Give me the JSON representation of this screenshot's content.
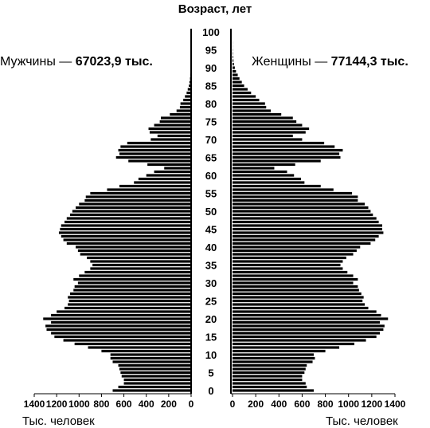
{
  "chart_data": {
    "type": "bar",
    "title": "Возраст, лет",
    "male_label_prefix": "Мужчины — ",
    "male_label_total": "67023,9 тыс.",
    "female_label_prefix": "Женщины — ",
    "female_label_total": "77144,3 тыс.",
    "axis_unit_left": "Тыс. человек",
    "axis_unit_right": "Тыс. человек",
    "ages": [
      0,
      1,
      2,
      3,
      4,
      5,
      6,
      7,
      8,
      9,
      10,
      11,
      12,
      13,
      14,
      15,
      16,
      17,
      18,
      19,
      20,
      21,
      22,
      23,
      24,
      25,
      26,
      27,
      28,
      29,
      30,
      31,
      32,
      33,
      34,
      35,
      36,
      37,
      38,
      39,
      40,
      41,
      42,
      43,
      44,
      45,
      46,
      47,
      48,
      49,
      50,
      51,
      52,
      53,
      54,
      55,
      56,
      57,
      58,
      59,
      60,
      61,
      62,
      63,
      64,
      65,
      66,
      67,
      68,
      69,
      70,
      71,
      72,
      73,
      74,
      75,
      76,
      77,
      78,
      79,
      80,
      81,
      82,
      83,
      84,
      85,
      86,
      87,
      88,
      89,
      90,
      91,
      92,
      93,
      94,
      95,
      96,
      97,
      98,
      99
    ],
    "age_ticks": [
      0,
      5,
      10,
      15,
      20,
      25,
      30,
      35,
      40,
      45,
      50,
      55,
      60,
      65,
      70,
      75,
      80,
      85,
      90,
      95,
      100
    ],
    "x_ticks_left": [
      1400,
      1200,
      1000,
      800,
      600,
      400,
      200,
      0
    ],
    "x_ticks_right": [
      0,
      200,
      400,
      600,
      800,
      1000,
      1200,
      1400
    ],
    "xlim": [
      0,
      1400
    ],
    "series": [
      {
        "name": "Мужчины",
        "side": "left",
        "values": [
          700,
          650,
          600,
          600,
          620,
          630,
          640,
          650,
          700,
          720,
          720,
          800,
          920,
          1040,
          1140,
          1220,
          1250,
          1290,
          1300,
          1250,
          1320,
          1250,
          1200,
          1130,
          1100,
          1090,
          1100,
          1080,
          1050,
          1040,
          1010,
          1050,
          1000,
          950,
          900,
          880,
          900,
          930,
          990,
          1010,
          1030,
          1110,
          1140,
          1160,
          1180,
          1170,
          1160,
          1130,
          1110,
          1080,
          1060,
          1030,
          1000,
          950,
          940,
          900,
          750,
          640,
          510,
          470,
          400,
          330,
          240,
          390,
          560,
          670,
          640,
          650,
          630,
          570,
          360,
          300,
          370,
          380,
          330,
          280,
          270,
          190,
          130,
          100,
          95,
          70,
          55,
          40,
          30,
          20,
          15,
          10,
          8,
          5,
          3,
          2,
          1,
          1,
          1,
          0,
          0,
          0,
          0,
          0
        ]
      },
      {
        "name": "Женщины",
        "side": "right",
        "values": [
          700,
          640,
          630,
          600,
          600,
          620,
          630,
          640,
          690,
          710,
          700,
          800,
          920,
          1050,
          1150,
          1240,
          1270,
          1300,
          1310,
          1270,
          1340,
          1280,
          1240,
          1170,
          1140,
          1120,
          1130,
          1110,
          1090,
          1080,
          1040,
          1080,
          1040,
          990,
          950,
          930,
          950,
          980,
          1040,
          1070,
          1100,
          1190,
          1230,
          1260,
          1300,
          1290,
          1290,
          1260,
          1240,
          1210,
          1190,
          1170,
          1140,
          1080,
          1080,
          1030,
          870,
          760,
          620,
          590,
          530,
          470,
          360,
          540,
          760,
          930,
          920,
          950,
          880,
          790,
          600,
          520,
          630,
          660,
          600,
          550,
          520,
          420,
          330,
          290,
          280,
          230,
          200,
          160,
          130,
          100,
          80,
          60,
          45,
          30,
          20,
          12,
          8,
          5,
          3,
          2,
          1,
          1,
          0,
          0
        ]
      }
    ]
  }
}
